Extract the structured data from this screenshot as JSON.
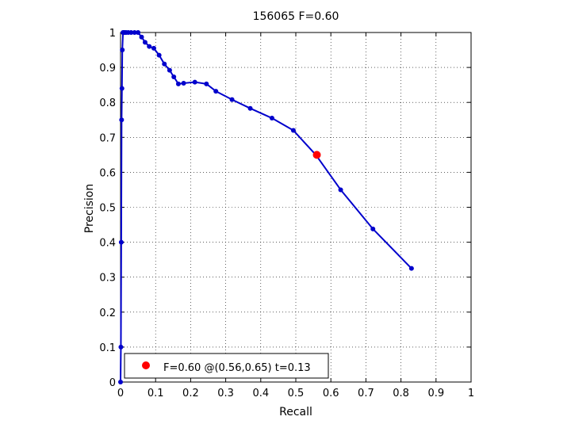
{
  "chart_data": {
    "type": "line",
    "title": "156065 F=0.60",
    "xlabel": "Recall",
    "ylabel": "Precision",
    "xlim": [
      0,
      1
    ],
    "ylim": [
      0,
      1
    ],
    "grid": true,
    "x_ticks": [
      "0",
      "0.1",
      "0.2",
      "0.3",
      "0.4",
      "0.5",
      "0.6",
      "0.7",
      "0.8",
      "0.9",
      "1"
    ],
    "y_ticks": [
      "0",
      "0.1",
      "0.2",
      "0.3",
      "0.4",
      "0.5",
      "0.6",
      "0.7",
      "0.8",
      "0.9",
      "1"
    ],
    "series": [
      {
        "color": "#0000cc",
        "marker": "dot",
        "x": [
          0.0,
          0.001,
          0.002,
          0.003,
          0.004,
          0.005,
          0.007,
          0.009,
          0.012,
          0.016,
          0.022,
          0.03,
          0.04,
          0.05,
          0.06,
          0.07,
          0.082,
          0.095,
          0.11,
          0.125,
          0.14,
          0.152,
          0.165,
          0.18,
          0.212,
          0.245,
          0.272,
          0.318,
          0.37,
          0.432,
          0.493,
          0.557,
          0.628,
          0.72,
          0.83
        ],
        "y": [
          0.0,
          0.1,
          0.4,
          0.75,
          0.84,
          0.95,
          1.0,
          1.0,
          1.0,
          1.0,
          1.0,
          1.0,
          1.0,
          1.0,
          0.987,
          0.972,
          0.96,
          0.955,
          0.935,
          0.91,
          0.892,
          0.873,
          0.853,
          0.855,
          0.858,
          0.853,
          0.832,
          0.808,
          0.783,
          0.755,
          0.72,
          0.65,
          0.55,
          0.438,
          0.325
        ]
      }
    ],
    "best_point": {
      "x": 0.56,
      "y": 0.65,
      "color": "#ff0000"
    },
    "legend": {
      "position": "bottom-left",
      "entries": [
        {
          "label": "F=0.60 @(0.56,0.65) t=0.13",
          "color": "#ff0000",
          "marker": "dot"
        }
      ]
    }
  }
}
